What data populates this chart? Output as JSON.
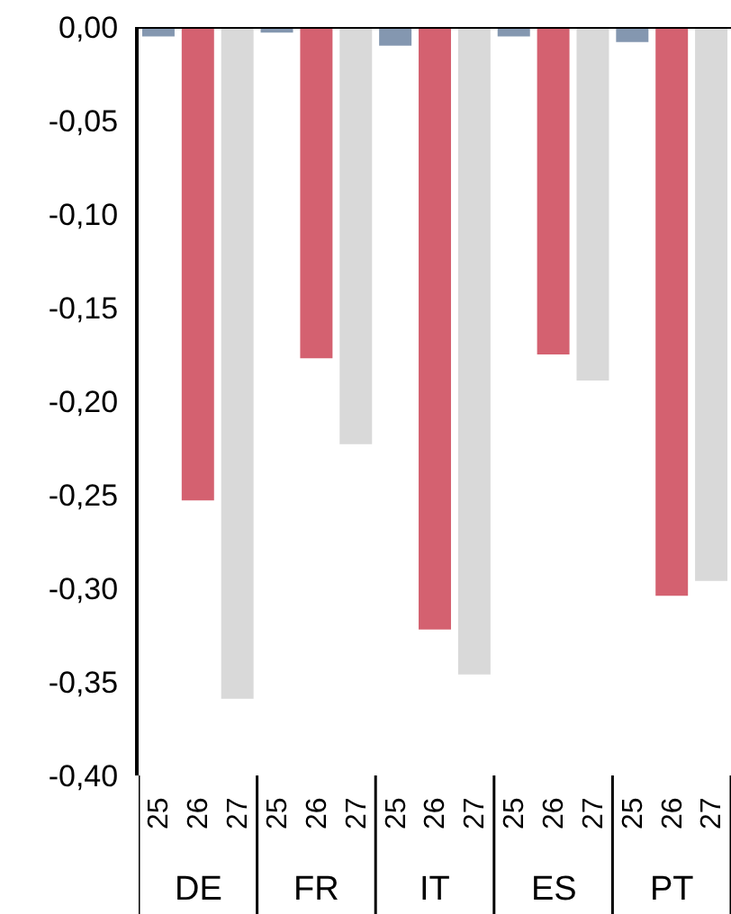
{
  "chart_data": {
    "type": "bar",
    "categories": [
      "25",
      "26",
      "27",
      "25",
      "26",
      "27",
      "25",
      "26",
      "27",
      "25",
      "26",
      "27",
      "25",
      "26",
      "27"
    ],
    "values": [
      -0.005,
      -0.253,
      -0.359,
      -0.003,
      -0.177,
      -0.223,
      -0.01,
      -0.322,
      -0.346,
      -0.005,
      -0.175,
      -0.189,
      -0.008,
      -0.304,
      -0.296
    ],
    "colors": [
      "#8497b0",
      "#d46170",
      "#d9d9d9",
      "#8497b0",
      "#d46170",
      "#d9d9d9",
      "#8497b0",
      "#d46170",
      "#d9d9d9",
      "#8497b0",
      "#d46170",
      "#d9d9d9",
      "#8497b0",
      "#d46170",
      "#d9d9d9"
    ],
    "annotations": [
      "DE",
      "FR",
      "IT",
      "ES",
      "PT"
    ],
    "ylim": [
      -0.4,
      0
    ],
    "yticks": [
      {
        "value": 0,
        "label": "0,00"
      },
      {
        "value": -0.05,
        "label": "-0,05"
      },
      {
        "value": -0.1,
        "label": "-0,10"
      },
      {
        "value": -0.15,
        "label": "-0,15"
      },
      {
        "value": -0.2,
        "label": "-0,20"
      },
      {
        "value": -0.25,
        "label": "-0,25"
      },
      {
        "value": -0.3,
        "label": "-0,30"
      },
      {
        "value": -0.35,
        "label": "-0,35"
      },
      {
        "value": -0.4,
        "label": "-0,40"
      }
    ],
    "grid": false
  }
}
